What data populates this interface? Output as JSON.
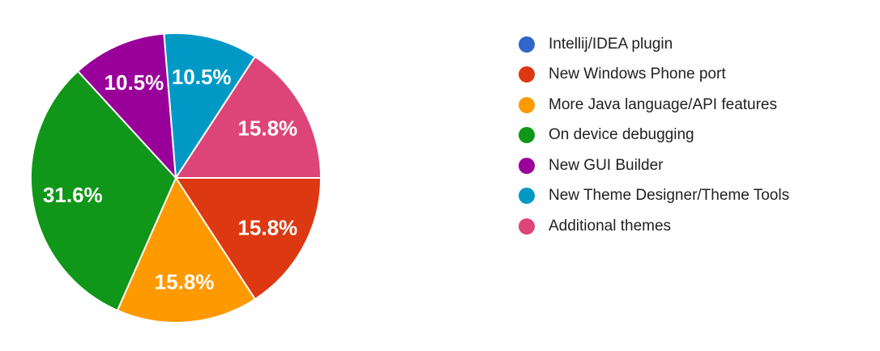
{
  "chart_data": {
    "type": "pie",
    "title": "",
    "legend_position": "right",
    "start_angle": "3-o-clock",
    "direction": "clockwise",
    "background_color": "#ffffff",
    "legend_text_color": "#212121",
    "slice_label_color": "#ffffff",
    "slices": [
      {
        "label": "Intellij/IDEA plugin",
        "value_pct": 0,
        "percent_label": "",
        "color": "#3366cc"
      },
      {
        "label": "New Windows Phone port",
        "value_pct": 15.8,
        "percent_label": "15.8%",
        "color": "#dc3912"
      },
      {
        "label": "More Java language/API features",
        "value_pct": 15.8,
        "percent_label": "15.8%",
        "color": "#ff9900"
      },
      {
        "label": "On device debugging",
        "value_pct": 31.6,
        "percent_label": "31.6%",
        "color": "#109618"
      },
      {
        "label": "New GUI Builder",
        "value_pct": 10.5,
        "percent_label": "10.5%",
        "color": "#990099"
      },
      {
        "label": "New Theme Designer/Theme Tools",
        "value_pct": 10.5,
        "percent_label": "10.5%",
        "color": "#0099c6"
      },
      {
        "label": "Additional themes",
        "value_pct": 15.8,
        "percent_label": "15.8%",
        "color": "#dd4477"
      }
    ]
  }
}
